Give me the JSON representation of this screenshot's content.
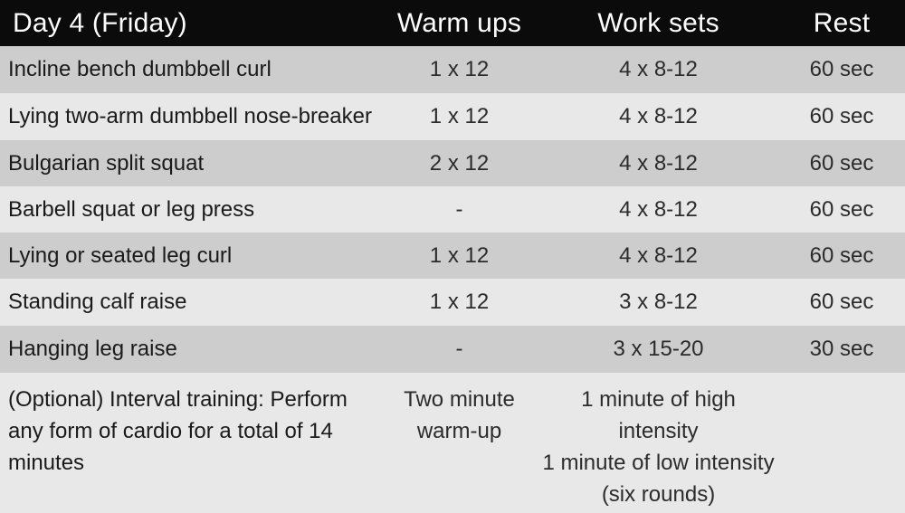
{
  "header": {
    "title": "Day 4 (Friday)",
    "col_warm": "Warm ups",
    "col_work": "Work sets",
    "col_rest": "Rest"
  },
  "rows": [
    {
      "exercise": "Incline bench dumbbell curl",
      "warm": "1 x 12",
      "work": "4 x 8-12",
      "rest": "60 sec"
    },
    {
      "exercise": "Lying two-arm dumbbell nose-breaker",
      "warm": "1 x 12",
      "work": "4 x 8-12",
      "rest": "60 sec"
    },
    {
      "exercise": "Bulgarian split squat",
      "warm": "2 x 12",
      "work": "4 x 8-12",
      "rest": "60 sec"
    },
    {
      "exercise": "Barbell squat or leg press",
      "warm": "-",
      "work": "4 x 8-12",
      "rest": "60 sec"
    },
    {
      "exercise": "Lying or seated leg curl",
      "warm": "1 x 12",
      "work": "4 x 8-12",
      "rest": "60 sec"
    },
    {
      "exercise": "Standing calf raise",
      "warm": "1 x 12",
      "work": "3 x 8-12",
      "rest": "60 sec"
    },
    {
      "exercise": "Hanging leg raise",
      "warm": "-",
      "work": "3 x 15-20",
      "rest": "30 sec"
    }
  ],
  "interval": {
    "exercise_lines": [
      "(Optional) Interval training: Perform",
      "any form of cardio for a total of 14",
      "minutes"
    ],
    "warm_lines": [
      "Two minute",
      "warm-up"
    ],
    "work_lines": [
      "1 minute of high",
      "intensity",
      "1 minute of low intensity",
      "(six rounds)"
    ],
    "rest": ""
  },
  "colors": {
    "header_bg": "#0b0b0b",
    "header_text": "#ffffff",
    "row_dark": "#cdcdcd",
    "row_light": "#e8e8e8"
  }
}
